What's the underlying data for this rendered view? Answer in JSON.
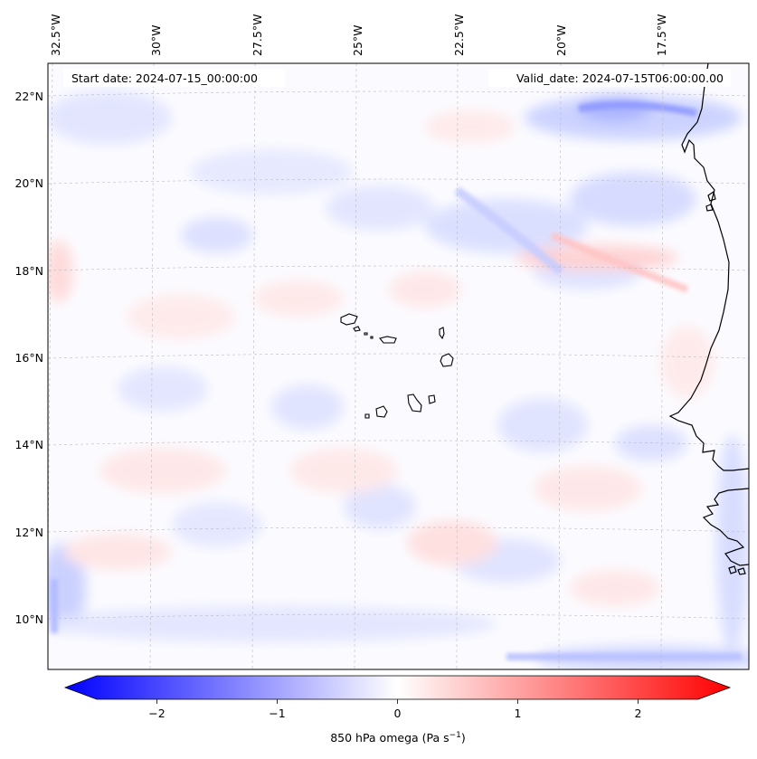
{
  "map": {
    "start_date": "Start date: 2024-07-15_00:00:00",
    "valid_date": "Valid_date: 2024-07-15T06:00:00.00",
    "lon_labels": [
      "32.5°W",
      "30°W",
      "27.5°W",
      "25°W",
      "22.5°W",
      "20°W",
      "17.5°W"
    ],
    "lat_labels": [
      "22°N",
      "20°N",
      "18°N",
      "16°N",
      "14°N",
      "12°N",
      "10°N"
    ],
    "field": "omega anomaly pattern (weak, mostly near zero)",
    "coastline_color": "#000000",
    "grid_color": "#bbbbbb"
  },
  "colorbar": {
    "label_prefix": "850 hPa omega (Pa s",
    "label_exp": "−1",
    "label_suffix": ")",
    "ticks": [
      "−2",
      "−1",
      "0",
      "1",
      "2"
    ],
    "tick_values": [
      -2,
      -1,
      0,
      1,
      2
    ],
    "range": [
      -2.6,
      2.6
    ],
    "cmap": "bwr",
    "colors": {
      "low": "#0000ff",
      "mid": "#ffffff",
      "high": "#ff0000"
    }
  }
}
